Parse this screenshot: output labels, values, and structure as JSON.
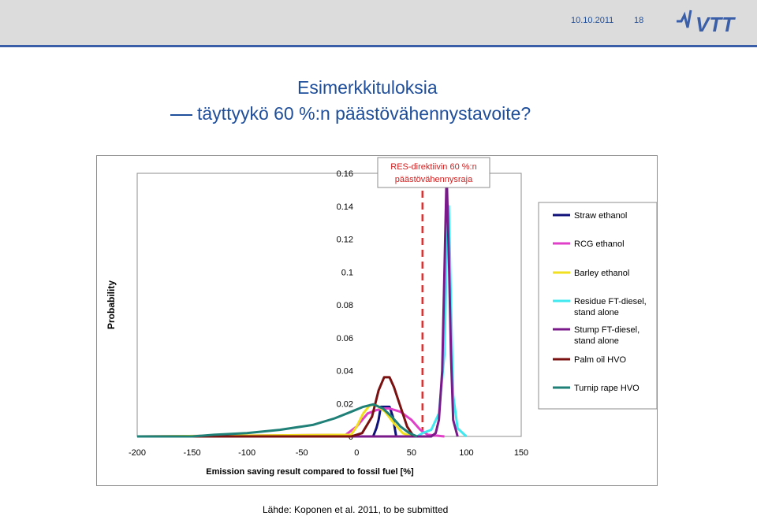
{
  "header": {
    "date": "10.10.2011",
    "page_number": "18",
    "logo_text": "VTT",
    "colors": {
      "bar": "#dcdcdc",
      "accent": "#3a5fa8",
      "text": "#1f4e9a"
    }
  },
  "title": {
    "line1": "Esimerkkituloksia",
    "line2": "täyttyykö 60 %:n päästövähennystavoite?"
  },
  "annotation": {
    "line1": "RES-direktiivin 60 %:n",
    "line2": "päästövähennysraja",
    "threshold_x": 60,
    "color": "#e23030"
  },
  "chart_data": {
    "type": "line",
    "title": "",
    "xlabel": "Emission saving result compared to fossil fuel [%]",
    "ylabel": "Probability",
    "xlim": [
      -200,
      150
    ],
    "ylim": [
      0,
      0.16
    ],
    "xticks": [
      "-200",
      "-150",
      "-100",
      "-50",
      "0",
      "50",
      "100",
      "150"
    ],
    "yticks": [
      "0",
      "0.02",
      "0.04",
      "0.06",
      "0.08",
      "0.1",
      "0.12",
      "0.14",
      "0.16"
    ],
    "grid": false,
    "legend_position": "right",
    "series": [
      {
        "name": "Straw ethanol",
        "color": "#10107a",
        "points": [
          [
            -200,
            0
          ],
          [
            15,
            0
          ],
          [
            18,
            0.005
          ],
          [
            20,
            0.01
          ],
          [
            22,
            0.018
          ],
          [
            30,
            0.018
          ],
          [
            33,
            0.012
          ],
          [
            36,
            0.0
          ],
          [
            40,
            0
          ]
        ]
      },
      {
        "name": "RCG ethanol",
        "color": "#e040c8",
        "points": [
          [
            -200,
            0
          ],
          [
            -10,
            0.001
          ],
          [
            0,
            0.006
          ],
          [
            10,
            0.014
          ],
          [
            18,
            0.016
          ],
          [
            25,
            0.017
          ],
          [
            30,
            0.017
          ],
          [
            40,
            0.015
          ],
          [
            50,
            0.01
          ],
          [
            58,
            0.004
          ],
          [
            65,
            0.001
          ],
          [
            80,
            0
          ]
        ]
      },
      {
        "name": "Barley ethanol",
        "color": "#f0e020",
        "points": [
          [
            -200,
            0
          ],
          [
            -5,
            0.001
          ],
          [
            0,
            0.006
          ],
          [
            6,
            0.014
          ],
          [
            12,
            0.019
          ],
          [
            18,
            0.019
          ],
          [
            26,
            0.015
          ],
          [
            34,
            0.008
          ],
          [
            42,
            0.002
          ],
          [
            50,
            0
          ]
        ]
      },
      {
        "name": "Residue FT-diesel, stand alone",
        "color": "#40e8f0",
        "points": [
          [
            -200,
            0
          ],
          [
            55,
            0
          ],
          [
            60,
            0.002
          ],
          [
            68,
            0.004
          ],
          [
            75,
            0.014
          ],
          [
            80,
            0.05
          ],
          [
            82,
            0.11
          ],
          [
            84,
            0.14
          ],
          [
            86,
            0.08
          ],
          [
            88,
            0.025
          ],
          [
            92,
            0.005
          ],
          [
            100,
            0
          ]
        ]
      },
      {
        "name": "Stump FT-diesel, stand alone",
        "color": "#7a1a8a",
        "points": [
          [
            -200,
            0
          ],
          [
            68,
            0
          ],
          [
            72,
            0.002
          ],
          [
            75,
            0.01
          ],
          [
            78,
            0.04
          ],
          [
            80,
            0.1
          ],
          [
            82,
            0.16
          ],
          [
            84,
            0.11
          ],
          [
            86,
            0.05
          ],
          [
            88,
            0.01
          ],
          [
            92,
            0
          ]
        ]
      },
      {
        "name": "Palm oil HVO",
        "color": "#7a1010",
        "points": [
          [
            -200,
            0
          ],
          [
            -5,
            0
          ],
          [
            5,
            0.002
          ],
          [
            14,
            0.012
          ],
          [
            20,
            0.028
          ],
          [
            25,
            0.036
          ],
          [
            30,
            0.036
          ],
          [
            34,
            0.03
          ],
          [
            40,
            0.018
          ],
          [
            46,
            0.006
          ],
          [
            52,
            0
          ]
        ]
      },
      {
        "name": "Turnip rape HVO",
        "color": "#1f8078",
        "points": [
          [
            -200,
            0
          ],
          [
            -150,
            0
          ],
          [
            -130,
            0.001
          ],
          [
            -100,
            0.002
          ],
          [
            -70,
            0.004
          ],
          [
            -40,
            0.007
          ],
          [
            -20,
            0.011
          ],
          [
            -5,
            0.015
          ],
          [
            6,
            0.018
          ],
          [
            15,
            0.0195
          ],
          [
            24,
            0.017
          ],
          [
            32,
            0.012
          ],
          [
            40,
            0.006
          ],
          [
            48,
            0.002
          ],
          [
            55,
            0
          ]
        ]
      }
    ]
  },
  "source": "Lähde: Koponen et al. 2011, to be submitted"
}
